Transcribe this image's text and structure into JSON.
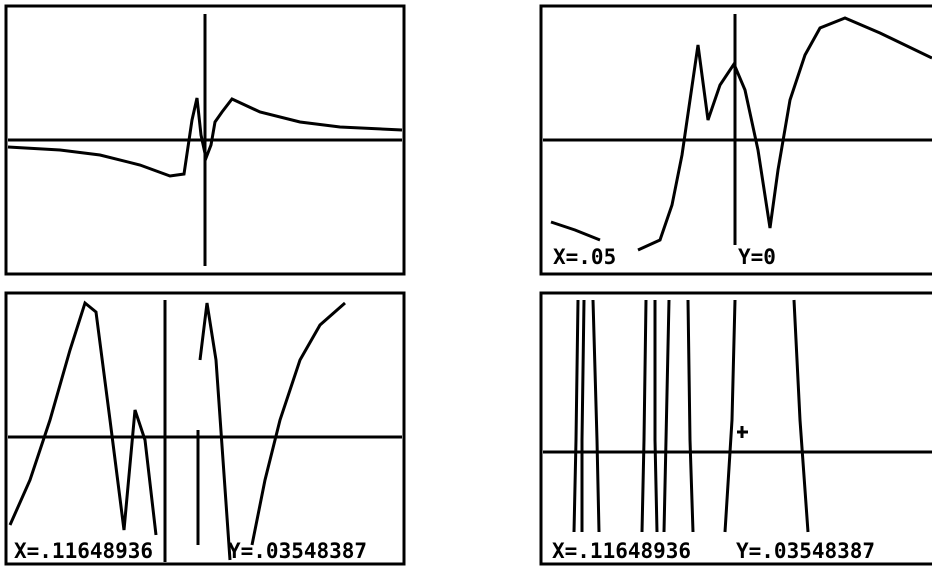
{
  "top_right": {
    "x_readout": "X=.05",
    "y_readout": "Y=0"
  },
  "bottom_left": {
    "x_readout": "X=.11648936",
    "y_readout": "Y=.03548387"
  },
  "bottom_right": {
    "x_readout": "X=.11648936",
    "y_readout": "Y=.03548387"
  }
}
